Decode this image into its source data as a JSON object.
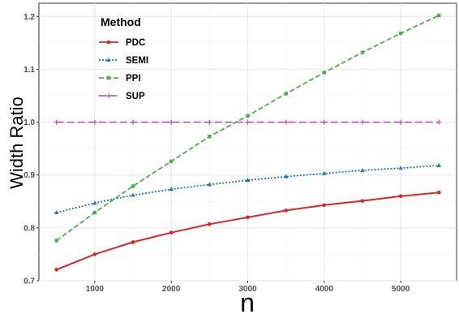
{
  "chart_data": {
    "type": "line",
    "xlabel": "n",
    "ylabel": "Width Ratio",
    "xlim": [
      270,
      5730
    ],
    "ylim": [
      0.7,
      1.225
    ],
    "x_ticks": [
      1000,
      2000,
      3000,
      4000,
      5000
    ],
    "y_ticks": [
      0.7,
      0.8,
      0.9,
      1.0,
      1.1,
      1.2
    ],
    "y_tick_labels": [
      "0.7",
      "0.8",
      "0.9",
      "1.0",
      "1.1",
      "1.2"
    ],
    "grid": true,
    "legend": {
      "title": "Method",
      "position": "top-left"
    },
    "x": [
      500,
      1000,
      1500,
      2000,
      2500,
      3000,
      3500,
      4000,
      4500,
      5000,
      5500
    ],
    "series": [
      {
        "name": "PDC",
        "color": "#d62728",
        "dash": "solid",
        "marker": "circle",
        "values": [
          0.721,
          0.75,
          0.773,
          0.791,
          0.807,
          0.82,
          0.833,
          0.843,
          0.851,
          0.86,
          0.867
        ]
      },
      {
        "name": "SEMI",
        "color": "#1f77b4",
        "dash": "dotted",
        "marker": "triangle",
        "values": [
          0.829,
          0.847,
          0.862,
          0.873,
          0.882,
          0.89,
          0.897,
          0.903,
          0.909,
          0.913,
          0.918
        ]
      },
      {
        "name": "PPI",
        "color": "#4daf4a",
        "dash": "dashed",
        "marker": "square",
        "values": [
          0.776,
          0.829,
          0.879,
          0.926,
          0.973,
          1.012,
          1.054,
          1.094,
          1.132,
          1.168,
          1.202
        ]
      },
      {
        "name": "SUP",
        "color": "#b25fc0",
        "dash": "longdash",
        "marker": "plus",
        "values": [
          1.0,
          1.0,
          1.0,
          1.0,
          1.0,
          1.0,
          1.0,
          1.0,
          1.0,
          1.0,
          1.0
        ]
      }
    ]
  }
}
